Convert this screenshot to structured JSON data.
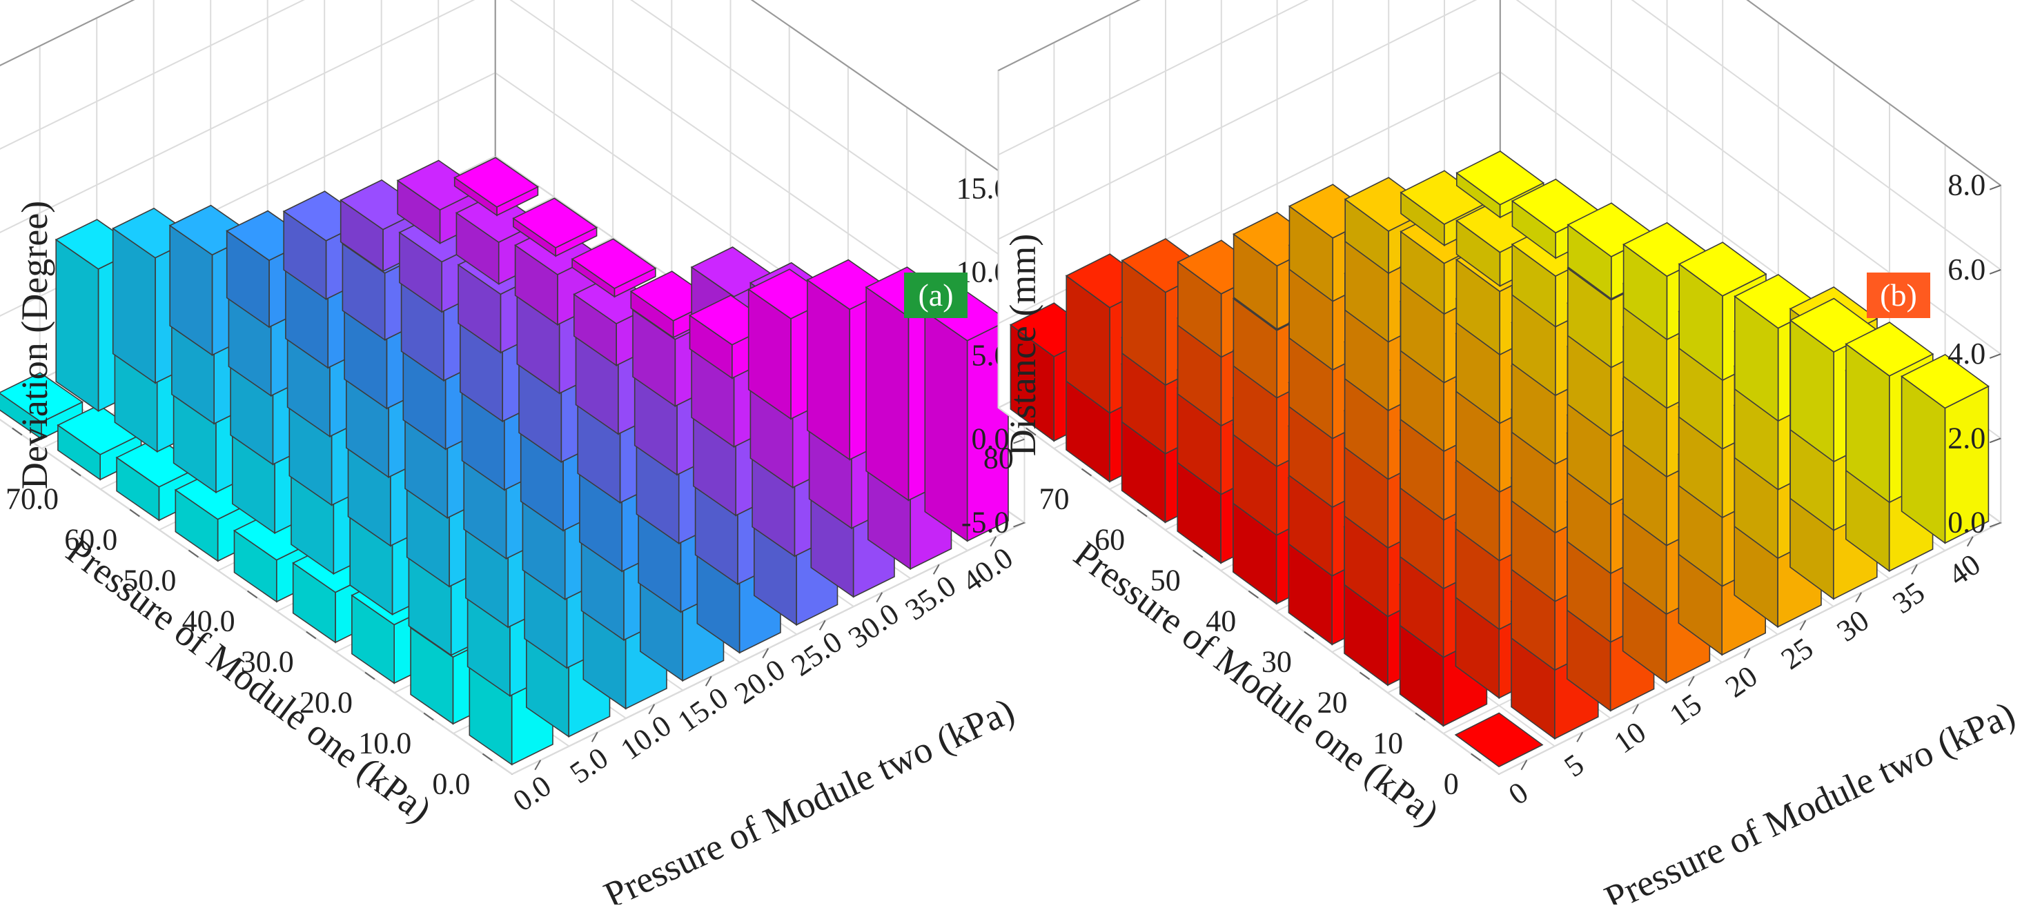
{
  "chart_data": [
    {
      "type": "bar3d",
      "panel_label": "(a)",
      "badge_color": "#1f9a3a",
      "title": "",
      "zlabel": "Deviation (Degree)",
      "xlabel": "Pressure of Module one (kPa)",
      "ylabel": "Pressure of Module two (kPa)",
      "zlim": [
        -5,
        15
      ],
      "z_ticks": [
        "15.0",
        "10.0",
        "5.0",
        "0.0",
        "-5.0"
      ],
      "z_tick_values": [
        15,
        10,
        5,
        0,
        -5
      ],
      "x_ticks": [
        "0.0",
        "10.0",
        "20.0",
        "30.0",
        "40.0",
        "50.0",
        "60.0",
        "70.0",
        "80.0"
      ],
      "y_ticks": [
        "0.0",
        "5.0",
        "10.0",
        "15.0",
        "20.0",
        "25.0",
        "30.0",
        "35.0",
        "40.0"
      ],
      "gradient": [
        "#00ffff",
        "#3399ff",
        "#ff00ff"
      ],
      "values": [
        [
          -0.5,
          7.5,
          7.5,
          7.0,
          7.0,
          8.0,
          8.5,
          7.5,
          7.0
        ],
        [
          -1.0,
          7.5,
          7.0,
          7.0,
          6.5,
          6.5,
          7.0,
          6.5,
          6.0
        ],
        [
          -1.5,
          7.0,
          6.5,
          6.5,
          5.5,
          5.5,
          5.0,
          5.5,
          4.0
        ],
        [
          -2.0,
          6.5,
          6.5,
          5.5,
          5.0,
          4.0,
          3.0,
          4.0,
          1.0
        ],
        [
          -2.5,
          6.0,
          5.0,
          4.5,
          3.0,
          2.5,
          1.5,
          -1.0,
          -3.0
        ],
        [
          -2.5,
          5.0,
          5.0,
          4.0,
          2.0,
          0.5,
          -0.5,
          -2.5,
          -4.0
        ],
        [
          -3.0,
          4.5,
          4.5,
          3.0,
          0.5,
          0.0,
          -1.5,
          -2.0,
          -4.5
        ],
        [
          -3.5,
          4.0,
          3.0,
          1.5,
          -0.5,
          -1.0,
          -2.0,
          -2.5,
          -4.5
        ],
        [
          -4.0,
          3.5,
          2.5,
          1.0,
          -1.0,
          -1.5,
          -2.5,
          -3.0,
          -4.5
        ]
      ]
    },
    {
      "type": "bar3d",
      "panel_label": "(b)",
      "badge_color": "#ff5a1f",
      "title": "",
      "zlabel": "Distance (mm)",
      "xlabel": "Pressure of Module one (kPa)",
      "ylabel": "Pressure of Module two (kPa)",
      "zlim": [
        0,
        8
      ],
      "z_ticks": [
        "8.0",
        "6.0",
        "4.0",
        "2.0",
        "0.0"
      ],
      "z_tick_values": [
        8,
        6,
        4,
        2,
        0
      ],
      "x_ticks": [
        "0",
        "10",
        "20",
        "30",
        "40",
        "50",
        "60",
        "70",
        "80"
      ],
      "y_ticks": [
        "0",
        "5",
        "10",
        "15",
        "20",
        "25",
        "30",
        "35",
        "40"
      ],
      "gradient": [
        "#ff0000",
        "#ff9900",
        "#ffff00"
      ],
      "values": [
        [
          0.0,
          2.5,
          4.2,
          3.5,
          4.0,
          4.5,
          5.8,
          4.0,
          3.2
        ],
        [
          2.6,
          3.4,
          3.8,
          4.2,
          3.8,
          3.5,
          3.8,
          4.5,
          3.0
        ],
        [
          3.0,
          3.5,
          3.2,
          3.8,
          3.0,
          3.2,
          3.5,
          3.0,
          2.6
        ],
        [
          3.2,
          3.6,
          3.0,
          3.5,
          3.2,
          3.0,
          2.8,
          2.5,
          2.2
        ],
        [
          3.5,
          2.8,
          2.5,
          2.8,
          3.0,
          2.6,
          2.4,
          2.2,
          2.0
        ],
        [
          3.4,
          2.5,
          2.2,
          2.5,
          2.8,
          2.2,
          1.8,
          1.6,
          1.5
        ],
        [
          3.0,
          2.2,
          2.0,
          2.0,
          2.5,
          2.0,
          1.5,
          1.2,
          1.0
        ],
        [
          3.2,
          2.0,
          1.8,
          1.6,
          2.2,
          1.8,
          1.2,
          0.8,
          0.6
        ],
        [
          2.0,
          2.5,
          2.2,
          1.5,
          1.5,
          1.5,
          1.0,
          0.5,
          0.3
        ]
      ]
    }
  ]
}
